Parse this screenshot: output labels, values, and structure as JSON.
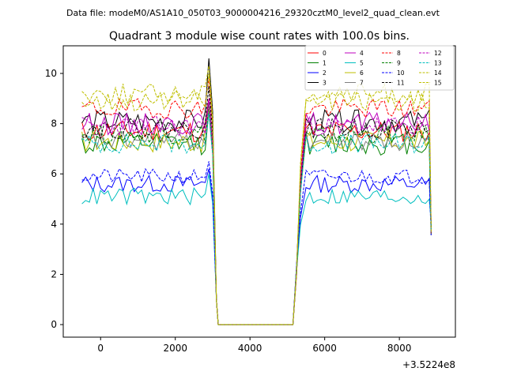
{
  "suptitle": "Data file: modeM0/AS1A10_050T03_9000004216_29320cztM0_level2_quad_clean.evt",
  "chart_data": {
    "type": "line",
    "title": "Quadrant 3 module wise count rates with 100.0s bins.",
    "xlabel": "",
    "ylabel": "",
    "x_offset_label": "+3.5224e8",
    "x_offset": 352240000,
    "xlim": [
      -1000,
      9500
    ],
    "ylim": [
      -0.5,
      11.1
    ],
    "xticks": [
      0,
      2000,
      4000,
      6000,
      8000
    ],
    "yticks": [
      0,
      2,
      4,
      6,
      8,
      10
    ],
    "legend_position": "top-right",
    "legend_columns": 4,
    "segments": [
      {
        "x_start": -500,
        "x_end": 2900,
        "step": 100
      },
      {
        "x_start": 5500,
        "x_end": 8800,
        "step": 100
      }
    ],
    "gap_points": [
      [
        3000,
        null
      ],
      [
        3100,
        1.0
      ],
      [
        3150,
        0.0
      ],
      [
        5150,
        0.0
      ],
      [
        5250,
        2.0
      ],
      [
        5350,
        4.5
      ]
    ],
    "drop_value": 3.8,
    "series": [
      {
        "name": "0",
        "color": "#ff0000",
        "dashed": false,
        "level": 7.7,
        "spread": 0.45,
        "peak": 9.0
      },
      {
        "name": "1",
        "color": "#008000",
        "dashed": false,
        "level": 7.2,
        "spread": 0.45,
        "peak": 8.5
      },
      {
        "name": "2",
        "color": "#0000ff",
        "dashed": false,
        "level": 5.6,
        "spread": 0.35,
        "peak": 6.2
      },
      {
        "name": "3",
        "color": "#000000",
        "dashed": false,
        "level": 8.1,
        "spread": 0.45,
        "peak": 10.6
      },
      {
        "name": "4",
        "color": "#bf00bf",
        "dashed": false,
        "level": 8.0,
        "spread": 0.45,
        "peak": 9.0
      },
      {
        "name": "5",
        "color": "#00bfbf",
        "dashed": false,
        "level": 5.1,
        "spread": 0.35,
        "peak": 6.0
      },
      {
        "name": "6",
        "color": "#bfbf00",
        "dashed": false,
        "level": 7.3,
        "spread": 0.45,
        "peak": 8.6
      },
      {
        "name": "7",
        "color": "#808080",
        "dashed": false,
        "level": 7.3,
        "spread": 0.4,
        "peak": 8.5
      },
      {
        "name": "8",
        "color": "#ff0000",
        "dashed": true,
        "level": 8.6,
        "spread": 0.4,
        "peak": 9.8
      },
      {
        "name": "9",
        "color": "#008000",
        "dashed": true,
        "level": 7.6,
        "spread": 0.4,
        "peak": 8.8
      },
      {
        "name": "10",
        "color": "#0000ff",
        "dashed": true,
        "level": 5.9,
        "spread": 0.3,
        "peak": 6.5
      },
      {
        "name": "11",
        "color": "#000000",
        "dashed": true,
        "level": 7.8,
        "spread": 0.4,
        "peak": 9.5
      },
      {
        "name": "12",
        "color": "#bf00bf",
        "dashed": true,
        "level": 7.9,
        "spread": 0.4,
        "peak": 8.9
      },
      {
        "name": "13",
        "color": "#00bfbf",
        "dashed": true,
        "level": 7.2,
        "spread": 0.4,
        "peak": 8.4
      },
      {
        "name": "14",
        "color": "#bfbf00",
        "dashed": true,
        "level": 9.2,
        "spread": 0.4,
        "peak": 10.3
      },
      {
        "name": "15",
        "color": "#bfbf00",
        "dashed": true,
        "level": 8.9,
        "spread": 0.4,
        "peak": 10.0
      }
    ]
  }
}
